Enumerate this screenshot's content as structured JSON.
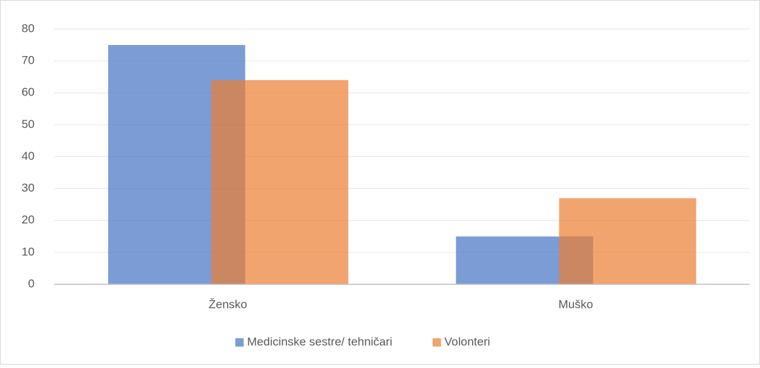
{
  "chart_data": {
    "type": "bar",
    "categories": [
      "Žensko",
      "Muško"
    ],
    "series": [
      {
        "name": "Medicinske sestre/ tehničari",
        "color": "#4472c4",
        "values": [
          75,
          15
        ]
      },
      {
        "name": "Volonteri",
        "color": "#ed7d31",
        "values": [
          64,
          27
        ]
      }
    ],
    "ylim": [
      0,
      80
    ],
    "yticks": [
      0,
      10,
      20,
      30,
      40,
      50,
      60,
      70,
      80
    ],
    "grid": true,
    "legend": "bottom"
  }
}
